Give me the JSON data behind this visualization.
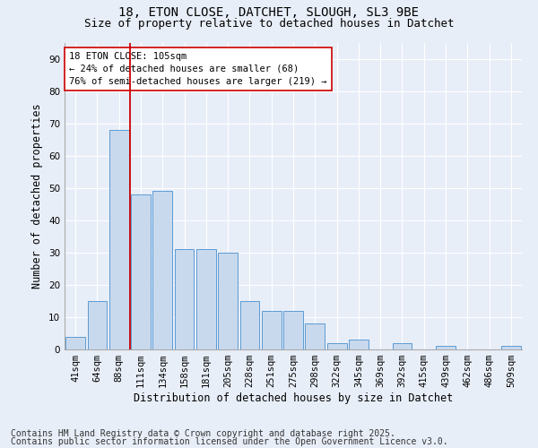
{
  "title": "18, ETON CLOSE, DATCHET, SLOUGH, SL3 9BE",
  "subtitle": "Size of property relative to detached houses in Datchet",
  "xlabel": "Distribution of detached houses by size in Datchet",
  "ylabel": "Number of detached properties",
  "bar_labels": [
    "41sqm",
    "64sqm",
    "88sqm",
    "111sqm",
    "134sqm",
    "158sqm",
    "181sqm",
    "205sqm",
    "228sqm",
    "251sqm",
    "275sqm",
    "298sqm",
    "322sqm",
    "345sqm",
    "369sqm",
    "392sqm",
    "415sqm",
    "439sqm",
    "462sqm",
    "486sqm",
    "509sqm"
  ],
  "bar_values": [
    4,
    15,
    68,
    48,
    49,
    31,
    31,
    30,
    15,
    12,
    12,
    8,
    2,
    3,
    0,
    2,
    0,
    1,
    0,
    0,
    1
  ],
  "bar_color": "#c9d9ed",
  "bar_edgecolor": "#5b9bd5",
  "vline_color": "#cc0000",
  "annotation_text": "18 ETON CLOSE: 105sqm\n← 24% of detached houses are smaller (68)\n76% of semi-detached houses are larger (219) →",
  "annotation_box_edgecolor": "#cc0000",
  "annotation_box_facecolor": "#ffffff",
  "ylim": [
    0,
    95
  ],
  "yticks": [
    0,
    10,
    20,
    30,
    40,
    50,
    60,
    70,
    80,
    90
  ],
  "footer1": "Contains HM Land Registry data © Crown copyright and database right 2025.",
  "footer2": "Contains public sector information licensed under the Open Government Licence v3.0.",
  "bg_color": "#e8eef8",
  "plot_bg_color": "#e8eef8",
  "title_fontsize": 10,
  "subtitle_fontsize": 9,
  "axis_fontsize": 8.5,
  "tick_fontsize": 7.5,
  "annotation_fontsize": 7.5,
  "footer_fontsize": 7
}
